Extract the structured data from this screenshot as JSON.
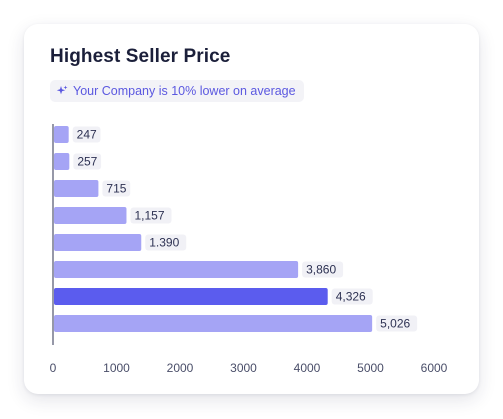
{
  "card": {
    "title": "Highest Seller Price",
    "badge_text": "Your Company is 10% lower on average",
    "badge_icon": "sparkle-icon"
  },
  "colors": {
    "bar": "#a5a4f5",
    "bar_highlight": "#5b5cee",
    "badge_text": "#5b58e0",
    "axis": "#2d3152"
  },
  "chart_data": {
    "type": "bar",
    "orientation": "horizontal",
    "title": "Highest Seller Price",
    "values": [
      247,
      257,
      715,
      1157,
      1390,
      3860,
      4326,
      5026
    ],
    "value_labels": [
      "247",
      "257",
      "715",
      "1,157",
      "1.390",
      "3,860",
      "4,326",
      "5,026"
    ],
    "highlight_index": 6,
    "xlim": [
      0,
      6000
    ],
    "xticks": [
      0,
      1000,
      2000,
      3000,
      4000,
      5000,
      6000
    ],
    "xtick_labels": [
      "0",
      "1000",
      "2000",
      "3000",
      "4000",
      "5000",
      "6000"
    ],
    "grid": false,
    "legend": "none"
  }
}
